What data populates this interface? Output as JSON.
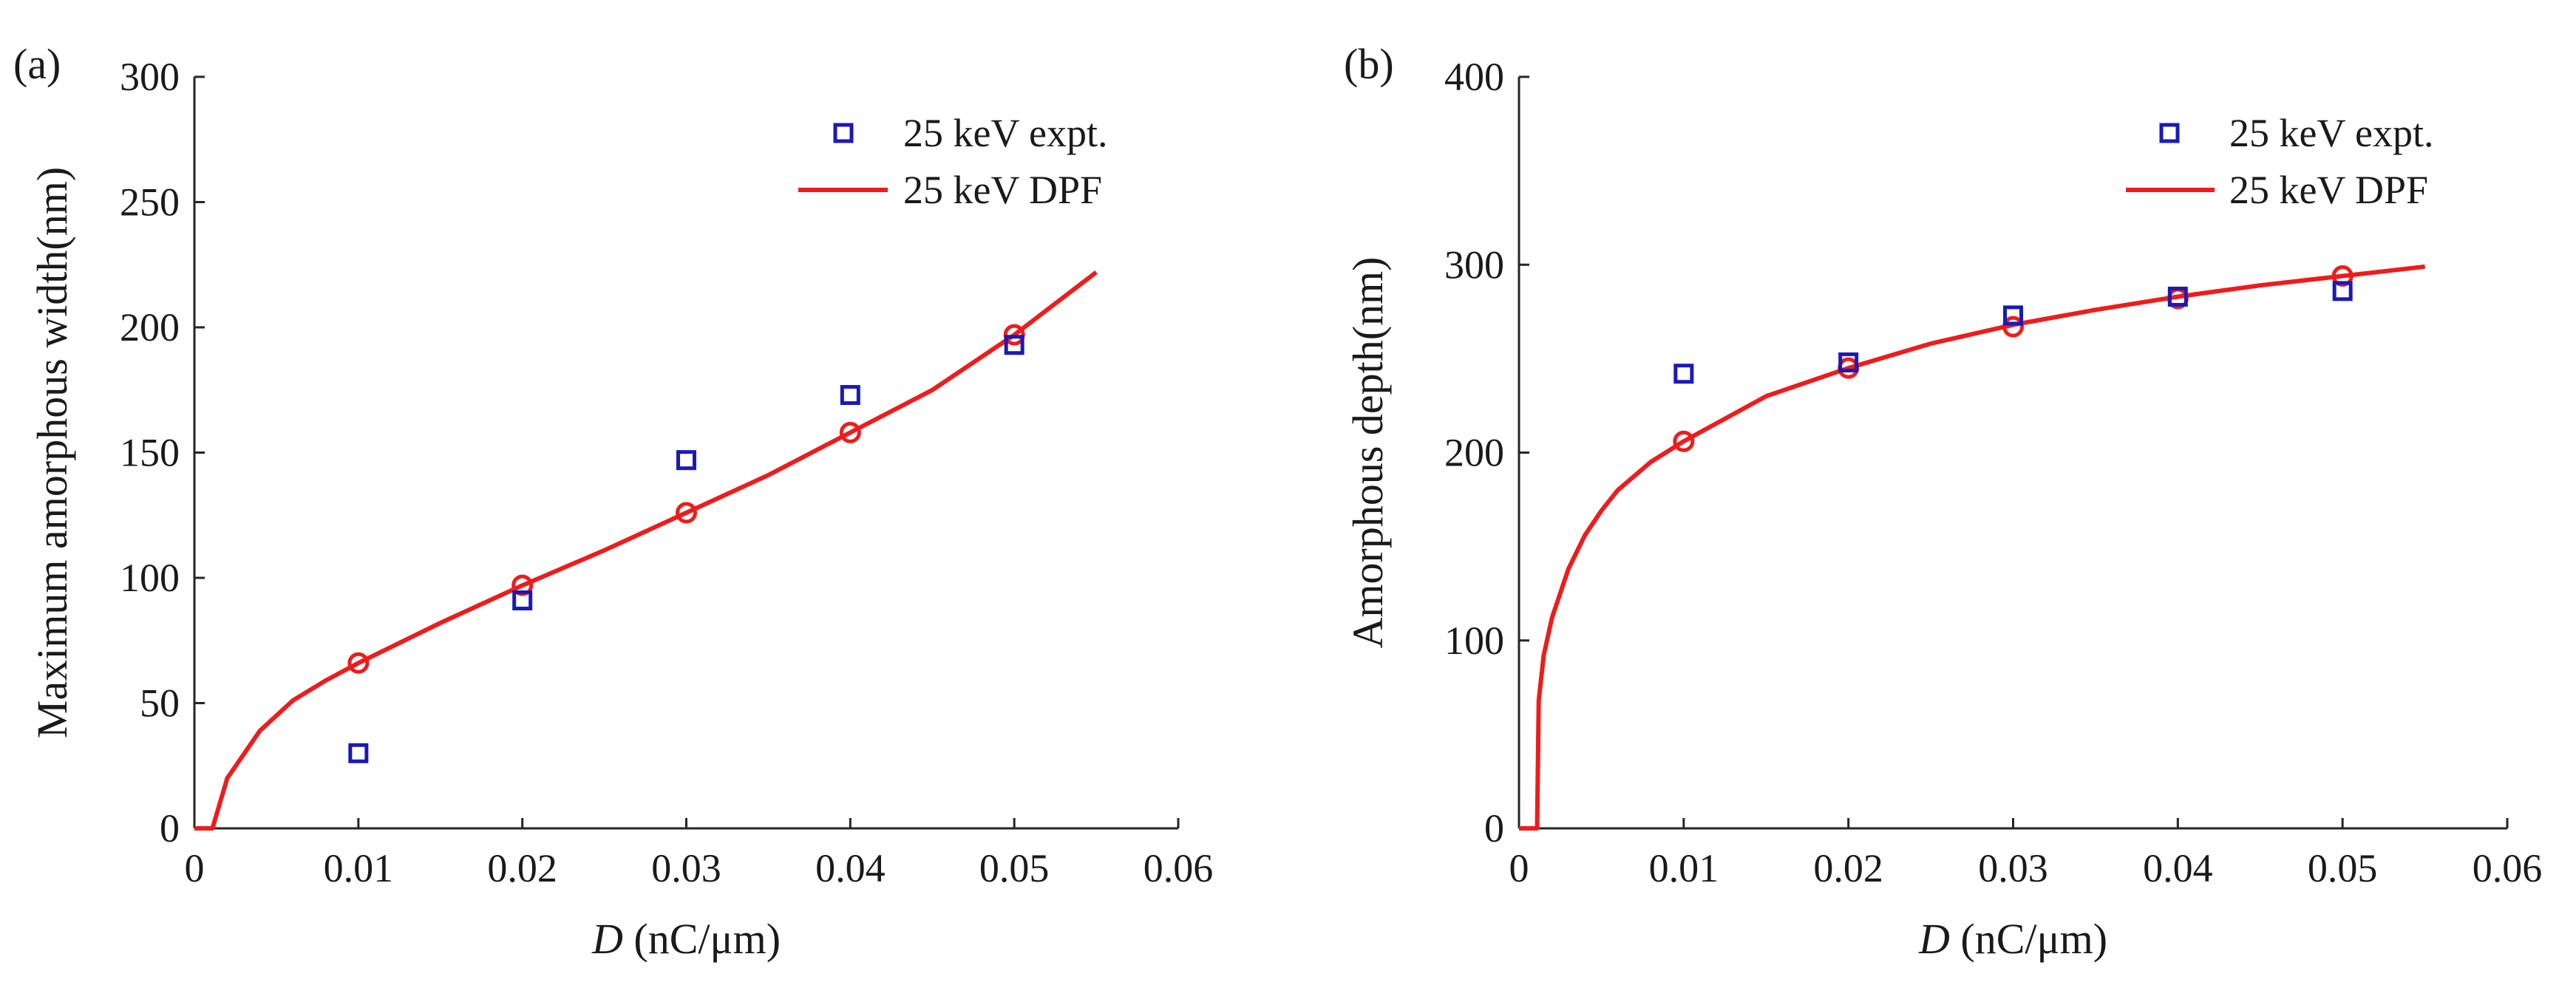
{
  "colors": {
    "model": "#ee1c1c",
    "expt": "#1a1ab8",
    "axis": "#262626",
    "text": "#1a1a1a"
  },
  "chart_data": [
    {
      "type": "scatter+line",
      "panel_label": "(a)",
      "xlabel_italic": "D",
      "xlabel_unit": " (nC/μm)",
      "ylabel": "Maximum amorphous width(nm)",
      "xlim": [
        0,
        0.06
      ],
      "ylim": [
        0,
        300
      ],
      "xticks": [
        "0",
        "0.01",
        "0.02",
        "0.03",
        "0.04",
        "0.05",
        "0.06"
      ],
      "yticks": [
        "0",
        "50",
        "100",
        "150",
        "200",
        "250",
        "300"
      ],
      "legend": [
        "25 keV expt.",
        "25 keV DPF"
      ],
      "series": [
        {
          "name": "25 keV expt.",
          "marker": "square",
          "x": [
            0.01,
            0.02,
            0.03,
            0.04,
            0.05
          ],
          "y": [
            30,
            91,
            147,
            173,
            193
          ]
        },
        {
          "name": "25 keV DPF",
          "style": "line",
          "x": [
            0,
            0.0011,
            0.002,
            0.004,
            0.006,
            0.008,
            0.01,
            0.015,
            0.02,
            0.025,
            0.03,
            0.035,
            0.04,
            0.045,
            0.05,
            0.055
          ],
          "y": [
            0,
            0,
            20,
            39,
            51,
            59,
            66,
            82,
            97,
            111,
            126,
            141,
            158,
            175,
            197,
            222
          ]
        },
        {
          "name": "25 keV DPF points",
          "marker": "circle",
          "x": [
            0.01,
            0.02,
            0.03,
            0.04,
            0.05
          ],
          "y": [
            66,
            97,
            126,
            158,
            197
          ]
        }
      ]
    },
    {
      "type": "scatter+line",
      "panel_label": "(b)",
      "xlabel_italic": "D",
      "xlabel_unit": " (nC/μm)",
      "ylabel": "Amorphous depth(nm)",
      "xlim": [
        0,
        0.06
      ],
      "ylim": [
        0,
        400
      ],
      "xticks": [
        "0",
        "0.01",
        "0.02",
        "0.03",
        "0.04",
        "0.05",
        "0.06"
      ],
      "yticks": [
        "0",
        "100",
        "200",
        "300",
        "400"
      ],
      "legend": [
        "25 keV expt.",
        "25 keV DPF"
      ],
      "series": [
        {
          "name": "25 keV expt.",
          "marker": "square",
          "x": [
            0.01,
            0.02,
            0.03,
            0.04,
            0.05
          ],
          "y": [
            242,
            248,
            273,
            283,
            286
          ]
        },
        {
          "name": "25 keV DPF",
          "style": "line",
          "x": [
            0,
            0.0011,
            0.0012,
            0.0015,
            0.002,
            0.003,
            0.004,
            0.005,
            0.006,
            0.008,
            0.01,
            0.015,
            0.02,
            0.025,
            0.03,
            0.035,
            0.04,
            0.045,
            0.05,
            0.055
          ],
          "y": [
            0,
            0,
            68,
            92,
            112,
            138,
            156,
            169,
            180,
            195,
            206,
            230,
            245,
            258,
            268,
            276,
            283,
            289,
            294,
            299
          ]
        },
        {
          "name": "25 keV DPF points",
          "marker": "circle",
          "x": [
            0.01,
            0.02,
            0.03,
            0.04,
            0.05
          ],
          "y": [
            206,
            245,
            267,
            282,
            294
          ]
        }
      ]
    }
  ]
}
